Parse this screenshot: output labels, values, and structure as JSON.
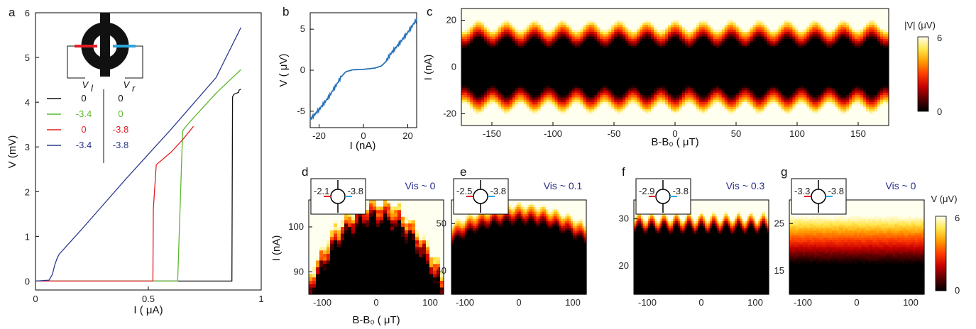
{
  "colors": {
    "blue_line": "#2b3a8f",
    "green_line": "#5cb82e",
    "red_line": "#e31e24",
    "black_line": "#111111",
    "b_curve": "#2a73b8",
    "lead_red": "#e31e24",
    "lead_blue": "#2aa7df",
    "vis_text": "#2b2e8a"
  },
  "colorbar": {
    "stops": [
      "#000000",
      "#5a0000",
      "#c80000",
      "#ff3c00",
      "#ff9c00",
      "#ffe64a",
      "#fffff0"
    ]
  },
  "chart_data": [
    {
      "id": "a",
      "panel_label": "a",
      "type": "line",
      "xlabel": "I ( μA)",
      "ylabel": "V (mV)",
      "xlim": [
        0,
        1
      ],
      "ylim": [
        -0.2,
        6
      ],
      "xticks": [
        "0",
        "0.5",
        "1"
      ],
      "yticks": [
        "0",
        "1",
        "2",
        "3",
        "4",
        "5",
        "6"
      ],
      "legend": {
        "header_left": "V",
        "header_left_sub": "l",
        "header_right": "V",
        "header_right_sub": "r",
        "rows": [
          {
            "vl": "0",
            "vr": "0",
            "color": "#111111"
          },
          {
            "vl": "-3.4",
            "vr": "0",
            "color": "#5cb82e"
          },
          {
            "vl": "0",
            "vr": "-3.8",
            "color": "#e31e24"
          },
          {
            "vl": "-3.4",
            "vr": "-3.8",
            "color": "#2b3a8f"
          }
        ]
      },
      "series": [
        {
          "color": "#111111",
          "x": [
            0,
            0.87,
            0.873,
            0.88,
            0.9,
            0.902,
            0.91
          ],
          "y": [
            0,
            0,
            4.12,
            4.18,
            4.22,
            4.27,
            4.29
          ]
        },
        {
          "color": "#5cb82e",
          "x": [
            0,
            0.63,
            0.652,
            0.66,
            0.7,
            0.8,
            0.91
          ],
          "y": [
            0,
            0,
            3.35,
            3.42,
            3.65,
            4.2,
            4.73
          ]
        },
        {
          "color": "#e31e24",
          "x": [
            0,
            0.52,
            0.522,
            0.535,
            0.6,
            0.65,
            0.7
          ],
          "y": [
            0,
            0,
            1.6,
            2.6,
            2.88,
            3.15,
            3.46
          ]
        },
        {
          "color": "#2b3a8f",
          "x": [
            0,
            0.06,
            0.075,
            0.085,
            0.095,
            0.105,
            0.2,
            0.4,
            0.6,
            0.8,
            0.91
          ],
          "y": [
            0,
            0.02,
            0.15,
            0.35,
            0.5,
            0.6,
            1.13,
            2.28,
            3.39,
            4.55,
            5.67
          ]
        }
      ]
    },
    {
      "id": "b",
      "panel_label": "b",
      "type": "line",
      "xlabel": "I (nA)",
      "ylabel": "V ( μV)",
      "xlim": [
        -24,
        24
      ],
      "ylim": [
        -7,
        7
      ],
      "xticks": [
        -20,
        0,
        20
      ],
      "yticks": [
        -5,
        0,
        5
      ],
      "series": [
        {
          "color": "#2a73b8",
          "x": [
            -24,
            -20,
            -16,
            -12,
            -10,
            -8,
            -5,
            0,
            5,
            8,
            10,
            12,
            16,
            20,
            24
          ],
          "y": [
            -6,
            -4.8,
            -3.4,
            -1.7,
            -0.8,
            -0.2,
            0.05,
            0.1,
            0.25,
            0.5,
            1.0,
            1.9,
            3.2,
            4.6,
            6.2
          ]
        }
      ]
    },
    {
      "id": "c",
      "panel_label": "c",
      "type": "heatmap",
      "xlabel": "B-B₀ ( μT)",
      "ylabel": "I (nA)",
      "xlim": [
        -175,
        175
      ],
      "ylim": [
        -25,
        25
      ],
      "xticks": [
        -150,
        -100,
        -50,
        0,
        50,
        100,
        150
      ],
      "yticks": [
        -20,
        0,
        20
      ],
      "colorbar_label": "|V| (μV)",
      "colorbar_ticks": [
        "0",
        "6"
      ],
      "oscillation_period_uT": 23
    },
    {
      "id": "d",
      "panel_label": "d",
      "type": "heatmap",
      "xlabel": "B-B₀ ( μT)",
      "ylabel": "I (nA)",
      "xlim": [
        -125,
        125
      ],
      "ylim": [
        85,
        106
      ],
      "xticks": [
        -100,
        0,
        100
      ],
      "yticks": [
        90,
        100
      ],
      "inset_left": "-2.1",
      "inset_right": "-3.8",
      "visibility": "Vis ~ 0"
    },
    {
      "id": "e",
      "panel_label": "e",
      "type": "heatmap",
      "xlabel": "",
      "ylabel": "",
      "xlim": [
        -125,
        125
      ],
      "ylim": [
        35,
        55
      ],
      "xticks": [
        -100,
        0,
        100
      ],
      "yticks": [
        40,
        50
      ],
      "inset_left": "-2.5",
      "inset_right": "-3.8",
      "visibility": "Vis ~ 0.1"
    },
    {
      "id": "f",
      "panel_label": "f",
      "type": "heatmap",
      "xlabel": "",
      "ylabel": "",
      "xlim": [
        -125,
        125
      ],
      "ylim": [
        14,
        34
      ],
      "xticks": [
        -100,
        0,
        100
      ],
      "yticks": [
        20,
        30
      ],
      "inset_left": "-2.9",
      "inset_right": "-3.8",
      "visibility": "Vis ~ 0.3"
    },
    {
      "id": "g",
      "panel_label": "g",
      "type": "heatmap",
      "xlabel": "",
      "ylabel": "",
      "xlim": [
        -125,
        125
      ],
      "ylim": [
        10,
        30
      ],
      "xticks": [
        -100,
        0,
        100
      ],
      "yticks": [
        15,
        25
      ],
      "inset_left": "-3.3",
      "inset_right": "-3.8",
      "visibility": "Vis ~ 0",
      "colorbar_label": "V (μV)",
      "colorbar_ticks": [
        "0",
        "6"
      ]
    }
  ]
}
